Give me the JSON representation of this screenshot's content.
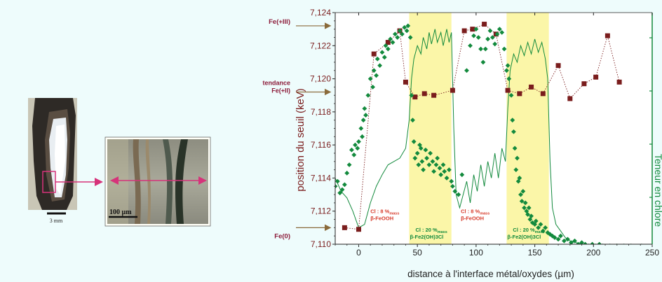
{
  "colors": {
    "background": "#eefcfc",
    "edge_series": "#7a1d1d",
    "chlorine_series": "#138a3d",
    "highlight_band": "#fbf6a8",
    "arrow": "#8a6a3a",
    "measure_arrow": "#d6337a"
  },
  "photos": {
    "left_scale": "3 mm",
    "right_scale": "100 µm"
  },
  "chart_data": {
    "type": "scatter",
    "xlabel": "distance à l'interface métal/oxydes (µm)",
    "ylabel": "position du seuil (keV)",
    "y2label": "Teneur en chlore",
    "xlim": [
      -20,
      250
    ],
    "ylim": [
      7.11,
      7.124
    ],
    "x_ticks": [
      "0",
      "50",
      "100",
      "150",
      "200",
      "250"
    ],
    "y_ticks": [
      "7,110",
      "7,112",
      "7,114",
      "7,116",
      "7,118",
      "7,120",
      "7,122",
      "7,124"
    ],
    "y_ticks_values": [
      7.11,
      7.112,
      7.114,
      7.116,
      7.118,
      7.12,
      7.122,
      7.124
    ],
    "reference_levels": [
      {
        "label": "Fe(+III)",
        "y": 7.1232
      },
      {
        "label": "tendance Fe(+II)",
        "y": 7.1192
      },
      {
        "label": "Fe(0)",
        "y": 7.111
      }
    ],
    "bands": [
      {
        "x_start": 43,
        "x_end": 79,
        "label_line1": "Cl : 20 %",
        "label_sub": "mass",
        "label_line2": "β-Fe2(OH)3Cl"
      },
      {
        "x_start": 126,
        "x_end": 162,
        "label_line1": "Cl : 20 %",
        "label_sub": "mass",
        "label_line2": "β-Fe2(OH)3Cl"
      }
    ],
    "annotations": [
      {
        "x": 10,
        "y": 7.112,
        "line1": "Cl : 8 %",
        "sub": "mass",
        "line2": "β-FeOOH"
      },
      {
        "x": 87,
        "y": 7.112,
        "line1": "Cl : 8 %",
        "sub": "mass",
        "line2": "β-FeOOH"
      }
    ],
    "series": [
      {
        "type": "square-dotted",
        "points": [
          [
            -12,
            7.111
          ],
          [
            0,
            7.1109
          ],
          [
            13,
            7.1215
          ],
          [
            25,
            7.1222
          ],
          [
            35,
            7.1229
          ],
          [
            40,
            7.1198
          ],
          [
            48,
            7.1189
          ],
          [
            56,
            7.1191
          ],
          [
            64,
            7.119
          ],
          [
            80,
            7.1193
          ],
          [
            90,
            7.1229
          ],
          [
            97,
            7.123
          ],
          [
            107,
            7.1233
          ],
          [
            117,
            7.1227
          ],
          [
            127,
            7.1193
          ],
          [
            137,
            7.1191
          ],
          [
            147,
            7.1195
          ],
          [
            157,
            7.1191
          ],
          [
            170,
            7.1208
          ],
          [
            180,
            7.1188
          ],
          [
            192,
            7.1197
          ],
          [
            202,
            7.1201
          ],
          [
            212,
            7.1226
          ],
          [
            222,
            7.1198
          ]
        ]
      },
      {
        "type": "diamond-scatter",
        "points": [
          [
            -20,
            7.1135
          ],
          [
            -18,
            7.1138
          ],
          [
            -16,
            7.1131
          ],
          [
            -14,
            7.1133
          ],
          [
            -12,
            7.1136
          ],
          [
            -10,
            7.1143
          ],
          [
            -8,
            7.1148
          ],
          [
            -6,
            7.1157
          ],
          [
            -4,
            7.1154
          ],
          [
            -3,
            7.116
          ],
          [
            -1,
            7.1158
          ],
          [
            0,
            7.1162
          ],
          [
            2,
            7.117
          ],
          [
            3,
            7.1165
          ],
          [
            4,
            7.1175
          ],
          [
            5,
            7.1182
          ],
          [
            6,
            7.1178
          ],
          [
            8,
            7.119
          ],
          [
            10,
            7.12
          ],
          [
            12,
            7.1195
          ],
          [
            13,
            7.1205
          ],
          [
            15,
            7.1202
          ],
          [
            16,
            7.1212
          ],
          [
            18,
            7.1208
          ],
          [
            20,
            7.1216
          ],
          [
            22,
            7.1213
          ],
          [
            23,
            7.122
          ],
          [
            25,
            7.1218
          ],
          [
            27,
            7.1224
          ],
          [
            29,
            7.1222
          ],
          [
            31,
            7.1227
          ],
          [
            33,
            7.1225
          ],
          [
            35,
            7.1229
          ],
          [
            37,
            7.1227
          ],
          [
            39,
            7.1231
          ],
          [
            41,
            7.1229
          ],
          [
            42,
            7.1232
          ],
          [
            44,
            7.1225
          ],
          [
            45,
            7.119
          ],
          [
            46,
            7.1175
          ],
          [
            47,
            7.1162
          ],
          [
            48,
            7.1152
          ],
          [
            50,
            7.1155
          ],
          [
            51,
            7.1148
          ],
          [
            52,
            7.116
          ],
          [
            53,
            7.1158
          ],
          [
            54,
            7.115
          ],
          [
            55,
            7.1145
          ],
          [
            57,
            7.1157
          ],
          [
            58,
            7.1152
          ],
          [
            60,
            7.1148
          ],
          [
            61,
            7.1155
          ],
          [
            63,
            7.115
          ],
          [
            64,
            7.1144
          ],
          [
            66,
            7.1148
          ],
          [
            67,
            7.1152
          ],
          [
            69,
            7.1146
          ],
          [
            70,
            7.1142
          ],
          [
            72,
            7.1148
          ],
          [
            73,
            7.1144
          ],
          [
            75,
            7.114
          ],
          [
            77,
            7.1145
          ],
          [
            79,
            7.1138
          ],
          [
            80,
            7.1135
          ],
          [
            82,
            7.1132
          ],
          [
            85,
            7.113
          ],
          [
            88,
            7.1142
          ],
          [
            92,
            7.1205
          ],
          [
            95,
            7.122
          ],
          [
            98,
            7.1226
          ],
          [
            100,
            7.123
          ],
          [
            102,
            7.1225
          ],
          [
            104,
            7.1218
          ],
          [
            106,
            7.121
          ],
          [
            108,
            7.1218
          ],
          [
            110,
            7.1224
          ],
          [
            112,
            7.1229
          ],
          [
            114,
            7.1225
          ],
          [
            116,
            7.1221
          ],
          [
            118,
            7.1227
          ],
          [
            120,
            7.123
          ],
          [
            122,
            7.1228
          ],
          [
            124,
            7.1218
          ],
          [
            126,
            7.1205
          ],
          [
            127,
            7.1208
          ],
          [
            128,
            7.12
          ],
          [
            130,
            7.119
          ],
          [
            131,
            7.1175
          ],
          [
            132,
            7.1168
          ],
          [
            133,
            7.1158
          ],
          [
            134,
            7.1145
          ],
          [
            135,
            7.1152
          ],
          [
            136,
            7.1138
          ],
          [
            137,
            7.114
          ],
          [
            138,
            7.113
          ],
          [
            139,
            7.1126
          ],
          [
            140,
            7.1132
          ],
          [
            141,
            7.1122
          ],
          [
            142,
            7.1125
          ],
          [
            143,
            7.112
          ],
          [
            144,
            7.1118
          ],
          [
            145,
            7.1122
          ],
          [
            146,
            7.1115
          ],
          [
            147,
            7.1117
          ],
          [
            148,
            7.1113
          ],
          [
            150,
            7.1112
          ],
          [
            151,
            7.1114
          ],
          [
            153,
            7.111
          ],
          [
            155,
            7.1112
          ],
          [
            157,
            7.1108
          ],
          [
            159,
            7.111
          ],
          [
            161,
            7.1107
          ],
          [
            163,
            7.1106
          ],
          [
            165,
            7.1105
          ],
          [
            167,
            7.1104
          ],
          [
            170,
            7.1103
          ],
          [
            172,
            7.1105
          ],
          [
            175,
            7.1102
          ],
          [
            178,
            7.1103
          ],
          [
            181,
            7.1101
          ],
          [
            184,
            7.1102
          ],
          [
            187,
            7.11
          ],
          [
            190,
            7.1101
          ],
          [
            193,
            7.11
          ],
          [
            196,
            7.1099
          ],
          [
            199,
            7.11
          ],
          [
            202,
            7.1099
          ],
          [
            205,
            7.11
          ],
          [
            208,
            7.1099
          ],
          [
            211,
            7.1098
          ],
          [
            214,
            7.1099
          ],
          [
            217,
            7.1098
          ],
          [
            220,
            7.1099
          ],
          [
            223,
            7.1098
          ],
          [
            226,
            7.1099
          ],
          [
            229,
            7.1098
          ],
          [
            232,
            7.1099
          ],
          [
            235,
            7.1098
          ],
          [
            238,
            7.1098
          ],
          [
            241,
            7.1099
          ],
          [
            244,
            7.1098
          ],
          [
            247,
            7.1098
          ]
        ]
      },
      {
        "type": "line",
        "points": [
          [
            -20,
            7.114
          ],
          [
            -15,
            7.1132
          ],
          [
            -10,
            7.1128
          ],
          [
            -5,
            7.112
          ],
          [
            0,
            7.111
          ],
          [
            5,
            7.1112
          ],
          [
            10,
            7.1125
          ],
          [
            15,
            7.1135
          ],
          [
            20,
            7.1142
          ],
          [
            25,
            7.1148
          ],
          [
            30,
            7.115
          ],
          [
            35,
            7.1152
          ],
          [
            40,
            7.1158
          ],
          [
            43,
            7.1175
          ],
          [
            45,
            7.12
          ],
          [
            47,
            7.1212
          ],
          [
            50,
            7.122
          ],
          [
            53,
            7.1215
          ],
          [
            55,
            7.1225
          ],
          [
            58,
            7.1218
          ],
          [
            60,
            7.1228
          ],
          [
            62,
            7.1221
          ],
          [
            65,
            7.123
          ],
          [
            67,
            7.1222
          ],
          [
            70,
            7.1228
          ],
          [
            72,
            7.122
          ],
          [
            75,
            7.123
          ],
          [
            77,
            7.1222
          ],
          [
            79,
            7.1228
          ],
          [
            81,
            7.117
          ],
          [
            83,
            7.113
          ],
          [
            86,
            7.1122
          ],
          [
            89,
            7.113
          ],
          [
            92,
            7.1138
          ],
          [
            95,
            7.1125
          ],
          [
            98,
            7.1142
          ],
          [
            101,
            7.1132
          ],
          [
            104,
            7.1148
          ],
          [
            107,
            7.1135
          ],
          [
            110,
            7.115
          ],
          [
            113,
            7.114
          ],
          [
            116,
            7.1155
          ],
          [
            119,
            7.114
          ],
          [
            122,
            7.1158
          ],
          [
            125,
            7.115
          ],
          [
            127,
            7.1182
          ],
          [
            129,
            7.1205
          ],
          [
            132,
            7.1215
          ],
          [
            135,
            7.121
          ],
          [
            138,
            7.122
          ],
          [
            141,
            7.1214
          ],
          [
            144,
            7.1222
          ],
          [
            147,
            7.1215
          ],
          [
            150,
            7.1224
          ],
          [
            153,
            7.1216
          ],
          [
            156,
            7.1222
          ],
          [
            159,
            7.1212
          ],
          [
            161,
            7.12
          ],
          [
            163,
            7.115
          ],
          [
            165,
            7.1122
          ],
          [
            168,
            7.1112
          ],
          [
            172,
            7.1108
          ],
          [
            176,
            7.1104
          ],
          [
            180,
            7.1102
          ],
          [
            185,
            7.1101
          ],
          [
            190,
            7.11
          ],
          [
            195,
            7.11
          ],
          [
            200,
            7.1099
          ],
          [
            210,
            7.1099
          ],
          [
            220,
            7.1098
          ],
          [
            230,
            7.1098
          ],
          [
            240,
            7.1098
          ],
          [
            250,
            7.1098
          ]
        ]
      }
    ]
  }
}
